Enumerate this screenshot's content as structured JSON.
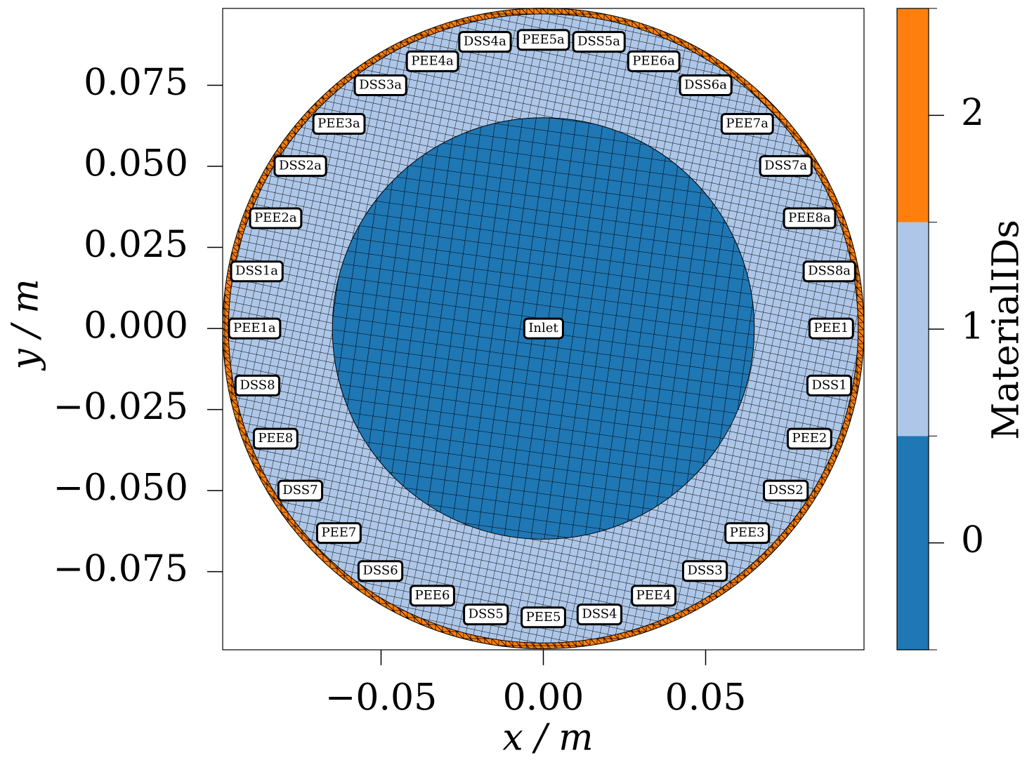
{
  "chart_data": {
    "type": "mesh",
    "xlabel": "x / m",
    "ylabel": "y / m",
    "xlim": [
      -0.0988,
      0.0988
    ],
    "ylim": [
      -0.0991,
      0.0987
    ],
    "xticks": [
      {
        "value": -0.05,
        "label": "−0.05"
      },
      {
        "value": 0,
        "label": "0.00"
      },
      {
        "value": 0.05,
        "label": "0.05"
      }
    ],
    "yticks": [
      {
        "value": -0.075,
        "label": "−0.075"
      },
      {
        "value": -0.05,
        "label": "−0.050"
      },
      {
        "value": -0.025,
        "label": "−0.025"
      },
      {
        "value": 0,
        "label": "0.000"
      },
      0.025,
      {
        "value": 0.05,
        "label": "0.050"
      },
      0.075
    ],
    "regions": [
      {
        "material": 2,
        "radius": 0.0988
      },
      {
        "material": 1,
        "radius": 0.097
      },
      {
        "material": 0,
        "radius": 0.065
      }
    ],
    "colorbar": {
      "label": "MaterialIDs",
      "lim": [
        -0.5,
        2.5
      ],
      "ticks": [
        0,
        1,
        2
      ],
      "colors": [
        "#1f77b4",
        "#aec7e8",
        "#ff7f0e"
      ]
    },
    "annotations": [
      {
        "text": "DSS4a",
        "x": -0.018,
        "y": 0.0884
      },
      {
        "text": "PEE5a",
        "x": 0.0,
        "y": 0.089
      },
      {
        "text": "DSS5a",
        "x": 0.0171,
        "y": 0.0884
      },
      {
        "text": "PEE4a",
        "x": -0.0342,
        "y": 0.0824
      },
      {
        "text": "PEE6a",
        "x": 0.034,
        "y": 0.0824
      },
      {
        "text": "DSS3a",
        "x": -0.0502,
        "y": 0.075
      },
      {
        "text": "DSS6a",
        "x": 0.05,
        "y": 0.075
      },
      {
        "text": "PEE3a",
        "x": -0.063,
        "y": 0.0631
      },
      {
        "text": "PEE7a",
        "x": 0.0628,
        "y": 0.0631
      },
      {
        "text": "DSS2a",
        "x": -0.0749,
        "y": 0.0501
      },
      {
        "text": "DSS7a",
        "x": 0.0747,
        "y": 0.0501
      },
      {
        "text": "PEE2a",
        "x": -0.0825,
        "y": 0.034
      },
      {
        "text": "PEE8a",
        "x": 0.082,
        "y": 0.034
      },
      {
        "text": "DSS1a",
        "x": -0.0883,
        "y": 0.0176
      },
      {
        "text": "DSS8a",
        "x": 0.0881,
        "y": 0.0176
      },
      {
        "text": "PEE1a",
        "x": -0.089,
        "y": 0.0
      },
      {
        "text": "PEE1",
        "x": 0.0887,
        "y": 0.0
      },
      {
        "text": "Inlet",
        "x": 0.0,
        "y": 0.0
      },
      {
        "text": "DSS8",
        "x": -0.0881,
        "y": -0.0176
      },
      {
        "text": "DSS1",
        "x": 0.0881,
        "y": -0.0176
      },
      {
        "text": "PEE8",
        "x": -0.0825,
        "y": -0.034
      },
      {
        "text": "PEE2",
        "x": 0.082,
        "y": -0.034
      },
      {
        "text": "DSS7",
        "x": -0.0749,
        "y": -0.05
      },
      {
        "text": "DSS2",
        "x": 0.0747,
        "y": -0.05
      },
      {
        "text": "PEE7",
        "x": -0.063,
        "y": -0.0631
      },
      {
        "text": "PEE3",
        "x": 0.0628,
        "y": -0.0631
      },
      {
        "text": "DSS6",
        "x": -0.0502,
        "y": -0.0748
      },
      {
        "text": "DSS3",
        "x": 0.0498,
        "y": -0.0748
      },
      {
        "text": "PEE6",
        "x": -0.0342,
        "y": -0.0824
      },
      {
        "text": "PEE4",
        "x": 0.034,
        "y": -0.0824
      },
      {
        "text": "DSS5",
        "x": -0.0177,
        "y": -0.0882
      },
      {
        "text": "DSS4",
        "x": 0.0173,
        "y": -0.0882
      },
      {
        "text": "PEE5",
        "x": 0.0,
        "y": -0.0891
      }
    ]
  }
}
